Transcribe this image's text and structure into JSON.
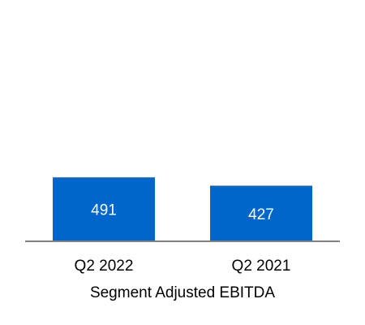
{
  "chart_data": {
    "type": "bar",
    "categories": [
      "Q2 2022",
      "Q2 2021"
    ],
    "values": [
      491,
      427
    ],
    "xlabel": "Segment Adjusted EBITDA",
    "ylim": [
      0,
      1840
    ],
    "grid": false,
    "bar_color": "#0066CC",
    "axis_color": "#808080",
    "data_label_color": "#FFFFFF"
  }
}
